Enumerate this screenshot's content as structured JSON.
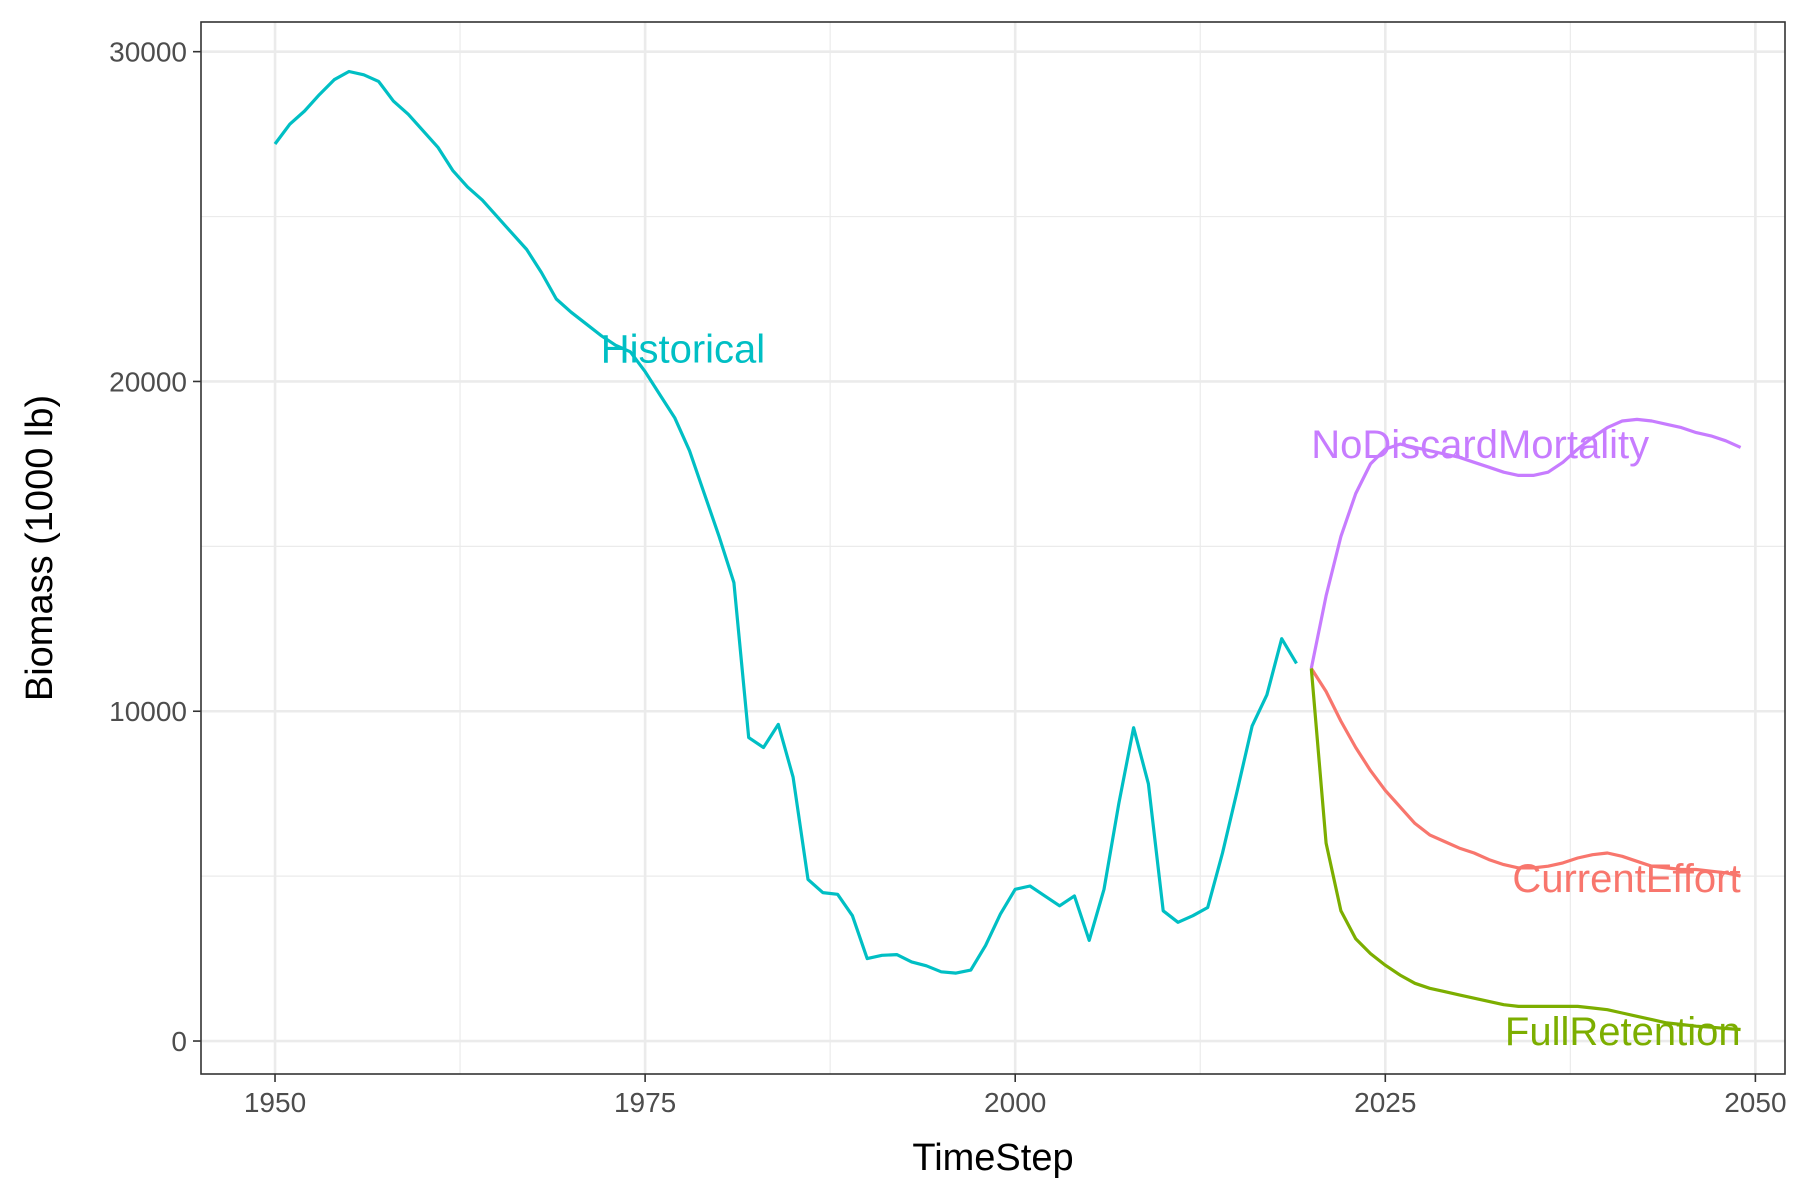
{
  "chart_data": {
    "type": "line",
    "xlabel": "TimeStep",
    "ylabel": "Biomass (1000 lb)",
    "xlim": [
      1945,
      2052
    ],
    "ylim": [
      -1000,
      30900
    ],
    "x_ticks": [
      1950,
      1975,
      2000,
      2025,
      2050
    ],
    "y_ticks": [
      0,
      10000,
      20000,
      30000
    ],
    "grid": true,
    "legend": "none (direct labels on lines)",
    "series": [
      {
        "name": "Historical",
        "color": "#00BFC4",
        "label_at": [
          1972,
          21000
        ],
        "x": [
          1950,
          1951,
          1952,
          1953,
          1954,
          1955,
          1956,
          1957,
          1958,
          1959,
          1960,
          1961,
          1962,
          1963,
          1964,
          1965,
          1966,
          1967,
          1968,
          1969,
          1970,
          1971,
          1972,
          1973,
          1974,
          1975,
          1976,
          1977,
          1978,
          1979,
          1980,
          1981,
          1982,
          1983,
          1984,
          1985,
          1986,
          1987,
          1988,
          1989,
          1990,
          1991,
          1992,
          1993,
          1994,
          1995,
          1996,
          1997,
          1998,
          1999,
          2000,
          2001,
          2002,
          2003,
          2004,
          2005,
          2006,
          2007,
          2008,
          2009,
          2010,
          2011,
          2012,
          2013,
          2014,
          2015,
          2016,
          2017,
          2018,
          2019
        ],
        "y": [
          27200,
          27800,
          28200,
          28700,
          29150,
          29400,
          29300,
          29100,
          28500,
          28100,
          27600,
          27100,
          26400,
          25900,
          25500,
          25000,
          24500,
          24000,
          23300,
          22500,
          22100,
          21750,
          21400,
          21100,
          20900,
          20300,
          19600,
          18900,
          17900,
          16600,
          15300,
          13900,
          9200,
          8900,
          9600,
          8000,
          4900,
          4500,
          4450,
          3800,
          2500,
          2600,
          2620,
          2400,
          2280,
          2100,
          2060,
          2150,
          2900,
          3850,
          4600,
          4700,
          4400,
          4100,
          4400,
          3050,
          4600,
          7200,
          9500,
          7800,
          3950,
          3600,
          3800,
          4050,
          5700,
          7600,
          9550,
          10500,
          12200,
          11450
        ]
      },
      {
        "name": "NoDiscardMortality",
        "color": "#C77CFF",
        "label_at": [
          2020,
          18100
        ],
        "x": [
          2020,
          2021,
          2022,
          2023,
          2024,
          2025,
          2026,
          2027,
          2028,
          2029,
          2030,
          2031,
          2032,
          2033,
          2034,
          2035,
          2036,
          2037,
          2038,
          2039,
          2040,
          2041,
          2042,
          2043,
          2044,
          2045,
          2046,
          2047,
          2048,
          2049
        ],
        "y": [
          11300,
          13500,
          15300,
          16600,
          17500,
          17950,
          18100,
          18000,
          17900,
          17800,
          17700,
          17550,
          17400,
          17250,
          17150,
          17150,
          17250,
          17550,
          17950,
          18300,
          18600,
          18800,
          18850,
          18800,
          18700,
          18600,
          18450,
          18350,
          18200,
          18000
        ]
      },
      {
        "name": "CurrentEffort",
        "color": "#F8766D",
        "label_at": [
          2049,
          4950
        ],
        "x": [
          2020,
          2021,
          2022,
          2023,
          2024,
          2025,
          2026,
          2027,
          2028,
          2029,
          2030,
          2031,
          2032,
          2033,
          2034,
          2035,
          2036,
          2037,
          2038,
          2039,
          2040,
          2041,
          2042,
          2043,
          2044,
          2045,
          2046,
          2047,
          2048,
          2049
        ],
        "y": [
          11300,
          10600,
          9700,
          8900,
          8200,
          7600,
          7100,
          6600,
          6250,
          6050,
          5850,
          5700,
          5500,
          5350,
          5250,
          5250,
          5300,
          5400,
          5550,
          5650,
          5700,
          5600,
          5450,
          5300,
          5250,
          5200,
          5200,
          5150,
          5100,
          5000
        ]
      },
      {
        "name": "FullRetention",
        "color": "#7CAE00",
        "label_at": [
          2049,
          300
        ],
        "x": [
          2020,
          2021,
          2022,
          2023,
          2024,
          2025,
          2026,
          2027,
          2028,
          2029,
          2030,
          2031,
          2032,
          2033,
          2034,
          2035,
          2036,
          2037,
          2038,
          2039,
          2040,
          2041,
          2042,
          2043,
          2044,
          2045,
          2046,
          2047,
          2048,
          2049
        ],
        "y": [
          11300,
          6000,
          3950,
          3100,
          2650,
          2300,
          2000,
          1750,
          1600,
          1500,
          1400,
          1300,
          1200,
          1100,
          1050,
          1050,
          1050,
          1050,
          1050,
          1000,
          950,
          850,
          750,
          650,
          550,
          500,
          450,
          420,
          380,
          350
        ]
      }
    ]
  }
}
